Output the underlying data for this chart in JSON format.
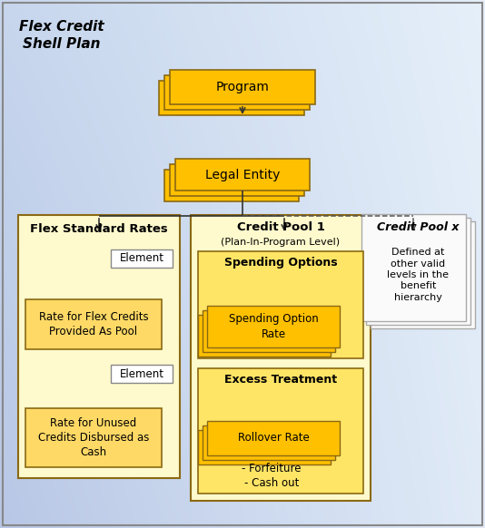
{
  "bg_color_tl": [
    0.72,
    0.78,
    0.9
  ],
  "bg_color_tr": [
    0.88,
    0.92,
    0.97
  ],
  "bg_color_bl": [
    0.78,
    0.84,
    0.93
  ],
  "bg_color_br": [
    0.9,
    0.94,
    0.98
  ],
  "gold_fill": "#FFC000",
  "gold_fill_light": "#FFD966",
  "container_fill": "#FFFACD",
  "subbox_fill": "#FFE566",
  "inner_fill": "#FFD040",
  "outline_dark": "#8B6914",
  "outline_med": "#A07820",
  "white_fill": "#FFFFFF",
  "white_outline": "#AAAAAA",
  "page_fill": "#FAFAFA",
  "page_outline": "#AAAAAA",
  "arrow_color": "#333333",
  "dash_color": "#555555",
  "text_color": "#000000",
  "border_color": "#888888",
  "title_text": "Flex Credit\nShell Plan",
  "program_label": "Program",
  "legal_entity_label": "Legal Entity",
  "fsr_label": "Flex Standard Rates",
  "elem_label": "Element",
  "rfc_label": "Rate for Flex Credits\nProvided As Pool",
  "ruc_label": "Rate for Unused\nCredits Disbursed as\nCash",
  "cp1_label": "Credit Pool 1",
  "cp1_sub_label": "(Plan-In-Program Level)",
  "so_label": "Spending Options",
  "sor_label": "Spending Option\nRate",
  "et_label": "Excess Treatment",
  "rr_label": "Rollover Rate",
  "forfeiture_label": "- Forfeiture\n- Cash out",
  "cpx_label": "Credit Pool x",
  "cpx_body": "Defined at\nother valid\nlevels in the\nbenefit\nhierarchy"
}
